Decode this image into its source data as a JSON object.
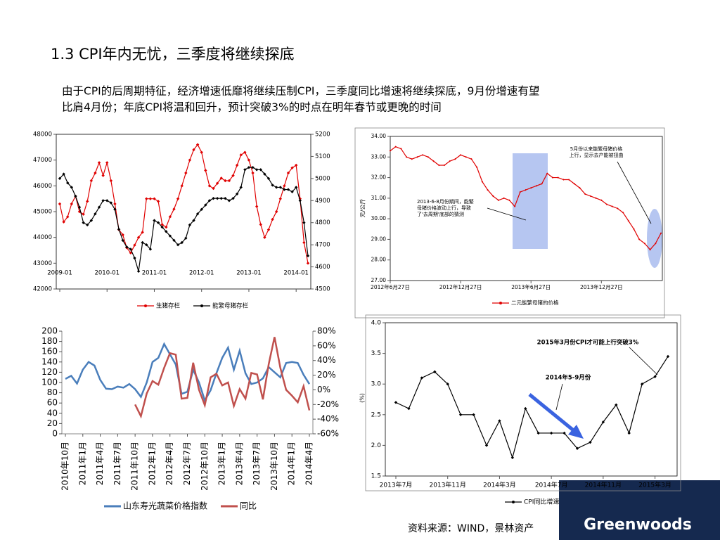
{
  "title": "1.3 CPI年内无忧，三季度将继续探底",
  "body": [
    "由于CPI的后周期特征，经济增速低靡将继续压制CPI，三季度同比增速将继续探底，9月份增速有望",
    "比肩4月份；年底CPI将温和回升，预计突破3%的时点在明年春节或更晚的时间"
  ],
  "source": "资料来源：WIND，景林资产",
  "logo": "Greenwoods",
  "chart_data": [
    {
      "type": "line",
      "markers": true,
      "categories": [
        "2009-01",
        null,
        null,
        null,
        null,
        null,
        null,
        null,
        null,
        null,
        null,
        null,
        "2010-01",
        null,
        null,
        null,
        null,
        null,
        null,
        null,
        null,
        null,
        null,
        null,
        "2011-01",
        null,
        null,
        null,
        null,
        null,
        null,
        null,
        null,
        null,
        null,
        null,
        "2012-01",
        null,
        null,
        null,
        null,
        null,
        null,
        null,
        null,
        null,
        null,
        null,
        "2013-01",
        null,
        null,
        null,
        null,
        null,
        null,
        null,
        null,
        null,
        null,
        null,
        "2014-01",
        null,
        null,
        null
      ],
      "ylim": [
        42000,
        48000
      ],
      "yticks": [
        42000,
        43000,
        44000,
        45000,
        46000,
        47000,
        48000
      ],
      "y2lim": [
        4500,
        5200
      ],
      "y2ticks": [
        4500,
        4600,
        4700,
        4800,
        4900,
        5000,
        5100,
        5200
      ],
      "series": [
        {
          "name": "生猪存栏",
          "color": "#e00000",
          "values": [
            45300,
            44600,
            44800,
            45300,
            45600,
            45000,
            44900,
            45400,
            46200,
            46500,
            46900,
            46400,
            46900,
            46200,
            45300,
            44300,
            44100,
            43600,
            43400,
            43700,
            44000,
            44200,
            45500,
            45500,
            45500,
            45400,
            44500,
            44400,
            44800,
            45100,
            45500,
            46000,
            46500,
            47000,
            47400,
            47600,
            47300,
            46600,
            46000,
            45900,
            46100,
            46300,
            46200,
            46200,
            46400,
            46800,
            47200,
            47300,
            47000,
            46500,
            45200,
            44500,
            44000,
            44300,
            44700,
            45000,
            45500,
            46000,
            46500,
            46700,
            46800,
            45500,
            43800,
            43000
          ]
        },
        {
          "name": "能繁母猪存栏",
          "color": "#000000",
          "axis": "y2",
          "values": [
            5000,
            5020,
            4980,
            4960,
            4920,
            4870,
            4800,
            4790,
            4810,
            4840,
            4870,
            4900,
            4900,
            4890,
            4860,
            4770,
            4720,
            4690,
            4680,
            4640,
            4580,
            4710,
            4700,
            4680,
            4810,
            4800,
            4780,
            4760,
            4740,
            4720,
            4700,
            4710,
            4730,
            4790,
            4810,
            4840,
            4860,
            4880,
            4900,
            4910,
            4910,
            4910,
            4910,
            4900,
            4910,
            4930,
            4960,
            5040,
            5050,
            5050,
            5040,
            5040,
            5020,
            5000,
            4970,
            4960,
            4960,
            4950,
            4950,
            4940,
            4960,
            4900,
            4800,
            4650
          ]
        }
      ]
    },
    {
      "type": "line",
      "markers": true,
      "ylabel": "元/公斤",
      "categories": [
        "2012年6月27日",
        null,
        null,
        null,
        null,
        null,
        null,
        null,
        null,
        null,
        null,
        null,
        null,
        "2012年12月27日",
        null,
        null,
        null,
        null,
        null,
        null,
        null,
        null,
        null,
        null,
        null,
        null,
        "2013年6月27日",
        null,
        null,
        null,
        null,
        null,
        null,
        null,
        null,
        null,
        null,
        null,
        null,
        "2013年12月27日",
        null,
        null,
        null,
        null,
        null,
        null,
        null,
        null,
        null,
        null,
        null
      ],
      "ylim": [
        27,
        34
      ],
      "yticks": [
        {
          "value": 27,
          "label": "27.00"
        },
        {
          "value": 28,
          "label": "28.00"
        },
        {
          "value": 29,
          "label": "29.00"
        },
        {
          "value": 30,
          "label": "30.00"
        },
        {
          "value": 31,
          "label": "31.00"
        },
        {
          "value": 32,
          "label": "32.00"
        },
        {
          "value": 33,
          "label": "33.00"
        },
        {
          "value": 34,
          "label": "34.00"
        }
      ],
      "annotations": [
        {
          "lines": [
            "5月份以来能繁母猪价格",
            "上行，显示去产能被扭曲"
          ]
        },
        {
          "lines": [
            "2013-6-8月份期间，能繁",
            "母猪价格波动上行，导致",
            "了'去周期'底部的猜测"
          ]
        }
      ],
      "series": [
        {
          "name": "二元能繁母猪的价格",
          "color": "#e00000",
          "values": [
            33.3,
            33.5,
            33.4,
            33.0,
            32.9,
            33.0,
            33.1,
            33.0,
            32.8,
            32.6,
            32.6,
            32.8,
            32.9,
            33.1,
            33.0,
            32.9,
            32.5,
            31.8,
            31.4,
            31.1,
            30.9,
            31.0,
            30.9,
            30.6,
            31.3,
            31.4,
            31.5,
            31.6,
            31.7,
            32.2,
            32.0,
            32.0,
            31.9,
            31.9,
            31.7,
            31.5,
            31.2,
            31.1,
            31.0,
            30.9,
            30.7,
            30.6,
            30.5,
            30.3,
            29.9,
            29.5,
            29.0,
            28.8,
            28.5,
            28.8,
            29.3
          ]
        }
      ]
    },
    {
      "type": "line",
      "markers": false,
      "categories": [
        "2010年10月",
        null,
        null,
        "2011年1月",
        null,
        null,
        "2011年4月",
        null,
        null,
        "2011年7月",
        null,
        null,
        "2011年10月",
        null,
        null,
        "2012年1月",
        null,
        null,
        "2012年4月",
        null,
        null,
        "2012年7月",
        null,
        null,
        "2012年10月",
        null,
        null,
        "2013年1月",
        null,
        null,
        "2013年4月",
        null,
        null,
        "2013年7月",
        null,
        null,
        "2013年10月",
        null,
        null,
        "2014年1月",
        null,
        null,
        "2014年4月"
      ],
      "ylim": [
        0,
        200
      ],
      "yticks": [
        0,
        20,
        40,
        60,
        80,
        100,
        120,
        140,
        160,
        180,
        200
      ],
      "y2lim": [
        -60,
        80
      ],
      "y2ticks": [
        {
          "value": -60,
          "label": "-60%"
        },
        {
          "value": -40,
          "label": "-40%"
        },
        {
          "value": -20,
          "label": "-20%"
        },
        {
          "value": 0,
          "label": "0%"
        },
        {
          "value": 20,
          "label": "20%"
        },
        {
          "value": 40,
          "label": "40%"
        },
        {
          "value": 60,
          "label": "60%"
        },
        {
          "value": 80,
          "label": "80%"
        }
      ],
      "series": [
        {
          "name": "山东寿光蔬菜价格指数",
          "color": "#4a7ebb",
          "values": [
            107,
            113,
            98,
            125,
            140,
            133,
            105,
            88,
            87,
            92,
            90,
            97,
            87,
            72,
            100,
            140,
            148,
            175,
            155,
            135,
            78,
            82,
            125,
            100,
            65,
            85,
            118,
            148,
            168,
            125,
            162,
            118,
            97,
            100,
            108,
            130,
            120,
            110,
            138,
            140,
            138,
            115,
            97
          ]
        },
        {
          "name": "同比",
          "color": "#c0504d",
          "axis": "y2",
          "values": [
            null,
            null,
            null,
            null,
            null,
            null,
            null,
            null,
            null,
            null,
            null,
            null,
            -20,
            -36,
            -5,
            12,
            7,
            30,
            50,
            48,
            -12,
            -11,
            37,
            0,
            -21,
            17,
            22,
            6,
            10,
            -22,
            1,
            -12,
            23,
            21,
            -13,
            35,
            72,
            30,
            0,
            -8,
            -17,
            5,
            -28
          ]
        }
      ]
    },
    {
      "type": "line",
      "markers": true,
      "ylabel": "(%)",
      "categories": [
        "2013年7月",
        null,
        null,
        null,
        "2013年11月",
        null,
        null,
        null,
        "2014年3月",
        null,
        null,
        null,
        "2014年7月",
        null,
        null,
        null,
        "2014年11月",
        null,
        null,
        null,
        "2015年3月",
        null
      ],
      "ylim": [
        1.5,
        4.0
      ],
      "yticks": [
        1.5,
        {
          "value": 2,
          "label": "2.0"
        },
        2.5,
        {
          "value": 3,
          "label": "3.0"
        },
        3.5,
        {
          "value": 4,
          "label": "4.0"
        }
      ],
      "annotations": [
        {
          "lines": [
            "2015年3月份CPI才可能上行突破3%"
          ]
        },
        {
          "lines": [
            "2014年5-9月份"
          ]
        }
      ],
      "series": [
        {
          "name": "CPI同比增速",
          "color": "#000000",
          "values": [
            2.7,
            2.6,
            3.1,
            3.2,
            3.0,
            2.5,
            2.5,
            2.0,
            2.4,
            1.8,
            2.6,
            2.2,
            2.2,
            2.2,
            1.95,
            2.05,
            2.38,
            2.66,
            2.2,
            3.0,
            3.12,
            3.45
          ]
        }
      ]
    }
  ]
}
